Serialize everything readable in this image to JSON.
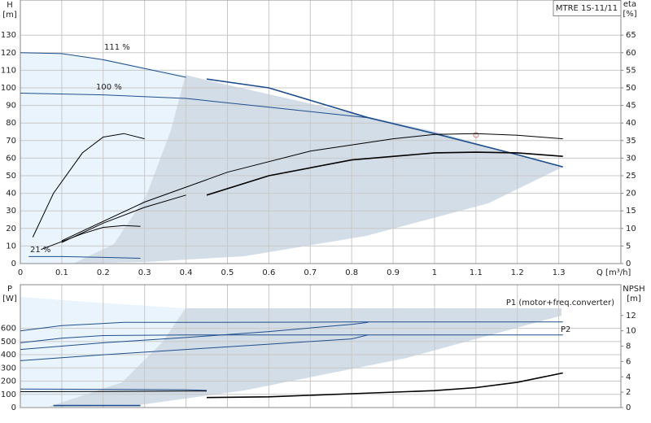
{
  "chart_data": [
    {
      "type": "line",
      "title": "MTRE 1S-11/11",
      "y_label": "H",
      "y_unit": "[m]",
      "y2_label": "eta",
      "y2_unit": "[%]",
      "x_label": "Q [m³/h]",
      "xlim": [
        0,
        1.45
      ],
      "xticks": [
        0,
        0.1,
        0.2,
        0.3,
        0.4,
        0.5,
        0.6,
        0.7,
        0.8,
        0.9,
        1,
        1.1,
        1.2,
        1.3
      ],
      "ylim": [
        0,
        150
      ],
      "yticks": [
        0,
        10,
        20,
        30,
        40,
        50,
        60,
        70,
        80,
        90,
        100,
        110,
        120,
        130
      ],
      "y2lim": [
        0,
        75
      ],
      "y2ticks": [
        0,
        5,
        10,
        15,
        20,
        25,
        30,
        35,
        40,
        45,
        50,
        55,
        60,
        65
      ],
      "grid": true,
      "annotations": [
        "111 %",
        "100 %",
        "21 %"
      ],
      "series": [
        {
          "color": "#1f4e8c",
          "width": 1,
          "x": [
            0,
            0.1,
            0.2,
            0.3,
            0.4
          ],
          "values": [
            120,
            119.5,
            116,
            111,
            106
          ]
        },
        {
          "color": "#1f4e8c",
          "width": 1.6,
          "x": [
            0.45,
            0.6,
            0.84,
            1.0,
            1.2,
            1.31
          ],
          "values": [
            105,
            100,
            83,
            74,
            62,
            55
          ]
        },
        {
          "color": "#1f4e8c",
          "width": 1,
          "x": [
            0,
            0.2,
            0.4,
            0.6,
            0.8,
            0.84
          ],
          "values": [
            97,
            96,
            94,
            89,
            84,
            83
          ]
        },
        {
          "color": "#1f4e8c",
          "width": 1,
          "x": [
            0.02,
            0.1,
            0.2,
            0.29
          ],
          "values": [
            4,
            4,
            3.5,
            3
          ]
        },
        {
          "color": "#000000",
          "width": 1,
          "x": [
            0.1,
            0.3,
            0.5,
            0.7,
            0.9,
            1.0,
            1.1,
            1.2,
            1.31
          ],
          "values": [
            13,
            35,
            52,
            64,
            71,
            73.5,
            74,
            73,
            71
          ]
        },
        {
          "color": "#000000",
          "width": 1.6,
          "axis": "y2",
          "x": [
            0.45,
            0.6,
            0.8,
            1.0,
            1.1,
            1.2,
            1.31
          ],
          "values": [
            19.5,
            25,
            29.5,
            31.5,
            31.7,
            31.5,
            30.5
          ]
        },
        {
          "color": "#000000",
          "width": 1,
          "axis": "y2",
          "x": [
            0.1,
            0.2,
            0.3,
            0.4
          ],
          "values": [
            6,
            11.5,
            16,
            19.5
          ]
        },
        {
          "color": "#000000",
          "width": 1,
          "x": [
            0.03,
            0.08,
            0.15,
            0.2,
            0.25,
            0.3
          ],
          "values": [
            15,
            40,
            63,
            72,
            74,
            71
          ]
        },
        {
          "color": "#000000",
          "width": 1,
          "axis": "y2",
          "x": [
            0.05,
            0.15,
            0.2,
            0.25,
            0.29
          ],
          "values": [
            4,
            8.5,
            10.3,
            10.8,
            10.6
          ]
        }
      ]
    },
    {
      "type": "line",
      "y_label": "P",
      "y_unit": "[W]",
      "y2_label": "NPSH",
      "y2_unit": "[m]",
      "xlim": [
        0,
        1.45
      ],
      "xticks": [
        0,
        0.1,
        0.2,
        0.3,
        0.4,
        0.5,
        0.6,
        0.7,
        0.8,
        0.9,
        1,
        1.1,
        1.2,
        1.3
      ],
      "ylim": [
        0,
        930
      ],
      "yticks": [
        0,
        100,
        200,
        300,
        400,
        500,
        600
      ],
      "y2lim": [
        0,
        16
      ],
      "y2ticks": [
        0,
        2,
        4,
        6,
        8,
        10,
        12
      ],
      "grid": true,
      "annotations": [
        "P1 (motor+freq.converter)",
        "P2"
      ],
      "series": [
        {
          "color": "#1f4e8c",
          "width": 1,
          "x": [
            0,
            0.1,
            0.25,
            0.45,
            0.8,
            1.31
          ],
          "values": [
            580,
            620,
            645,
            645,
            648,
            648
          ]
        },
        {
          "color": "#1f4e8c",
          "width": 1,
          "x": [
            0,
            0.1,
            0.2,
            0.4,
            0.8,
            1.31
          ],
          "values": [
            490,
            525,
            545,
            550,
            550,
            550
          ]
        },
        {
          "color": "#1f4e8c",
          "width": 1,
          "x": [
            0,
            0.2,
            0.4,
            0.6,
            0.8,
            0.84
          ],
          "values": [
            440,
            490,
            530,
            575,
            630,
            645
          ]
        },
        {
          "color": "#1f4e8c",
          "width": 1,
          "x": [
            0,
            0.2,
            0.4,
            0.6,
            0.8,
            0.84
          ],
          "values": [
            355,
            400,
            440,
            480,
            520,
            550
          ]
        },
        {
          "color": "#1f4e8c",
          "width": 1,
          "x": [
            0,
            0.2,
            0.4,
            0.45
          ],
          "values": [
            140,
            138,
            135,
            130
          ]
        },
        {
          "color": "#000000",
          "width": 1,
          "x": [
            0,
            0.2,
            0.4,
            0.45
          ],
          "values": [
            120,
            122,
            125,
            125
          ]
        },
        {
          "color": "#000000",
          "width": 1.6,
          "axis": "y2",
          "x": [
            0.45,
            0.6,
            0.8,
            1.0,
            1.1,
            1.2,
            1.31
          ],
          "values": [
            1.3,
            1.4,
            1.8,
            2.2,
            2.6,
            3.3,
            4.5
          ]
        },
        {
          "color": "#1f4e8c",
          "width": 1.6,
          "x": [
            0.08,
            0.29
          ],
          "values": [
            15,
            15
          ]
        }
      ]
    }
  ]
}
